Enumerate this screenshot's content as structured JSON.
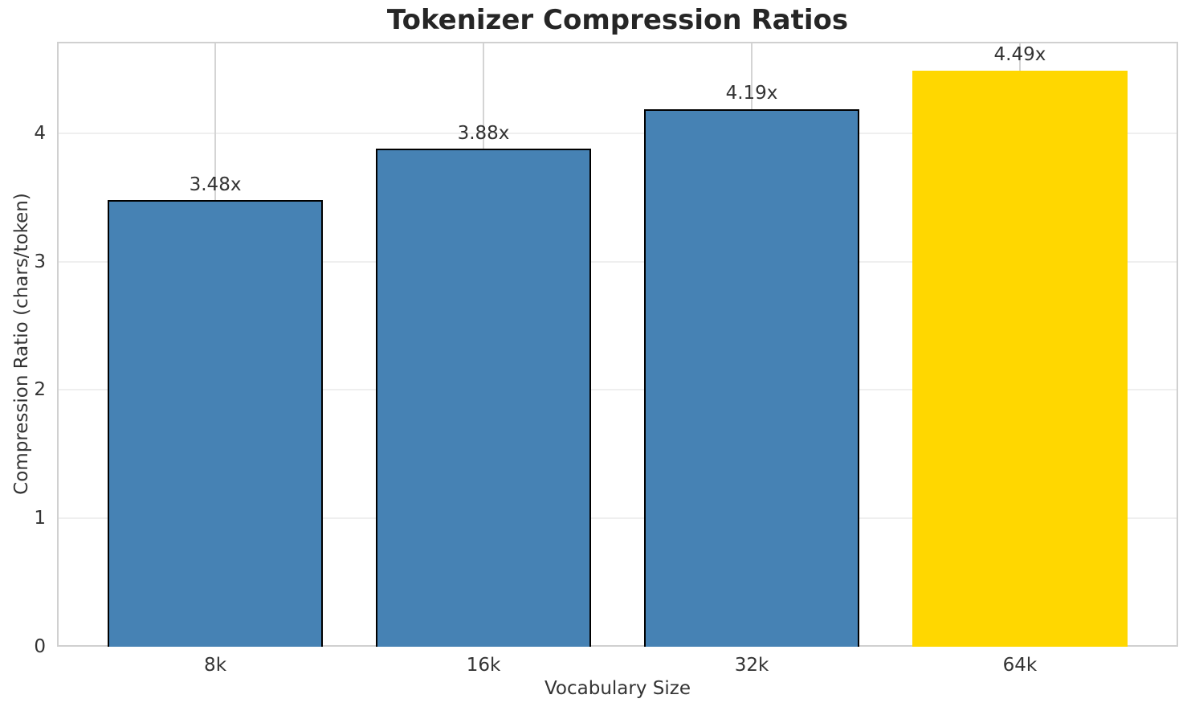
{
  "chart_data": {
    "type": "bar",
    "title": "Tokenizer Compression Ratios",
    "xlabel": "Vocabulary Size",
    "ylabel": "Compression Ratio (chars/token)",
    "categories": [
      "8k",
      "16k",
      "32k",
      "64k"
    ],
    "values": [
      3.48,
      3.88,
      4.19,
      4.49
    ],
    "bars": [
      {
        "category": "8k",
        "value": 3.48,
        "label": "3.48x",
        "color": "#4682B4",
        "edge": "#000000"
      },
      {
        "category": "16k",
        "value": 3.88,
        "label": "3.88x",
        "color": "#4682B4",
        "edge": "#000000"
      },
      {
        "category": "32k",
        "value": 4.19,
        "label": "4.19x",
        "color": "#4682B4",
        "edge": "#000000"
      },
      {
        "category": "64k",
        "value": 4.49,
        "label": "4.49x",
        "color": "#FFD700",
        "edge": "none"
      }
    ],
    "yticks": [
      "0",
      "1",
      "2",
      "3",
      "4"
    ],
    "ylim": [
      0,
      4.713
    ],
    "xlim": [
      -0.59,
      3.59
    ],
    "bar_width": 0.8,
    "grid": true,
    "legend": "none",
    "colors": {
      "base_bar": "#4682B4",
      "highlight_bar": "#FFD700",
      "bar_edge": "#000000",
      "spine": "#d0d0d0",
      "grid_horizontal": "#efefef",
      "grid_vertical": "#d4d4d4",
      "title_text": "#262626",
      "axis_text": "#333333"
    }
  }
}
